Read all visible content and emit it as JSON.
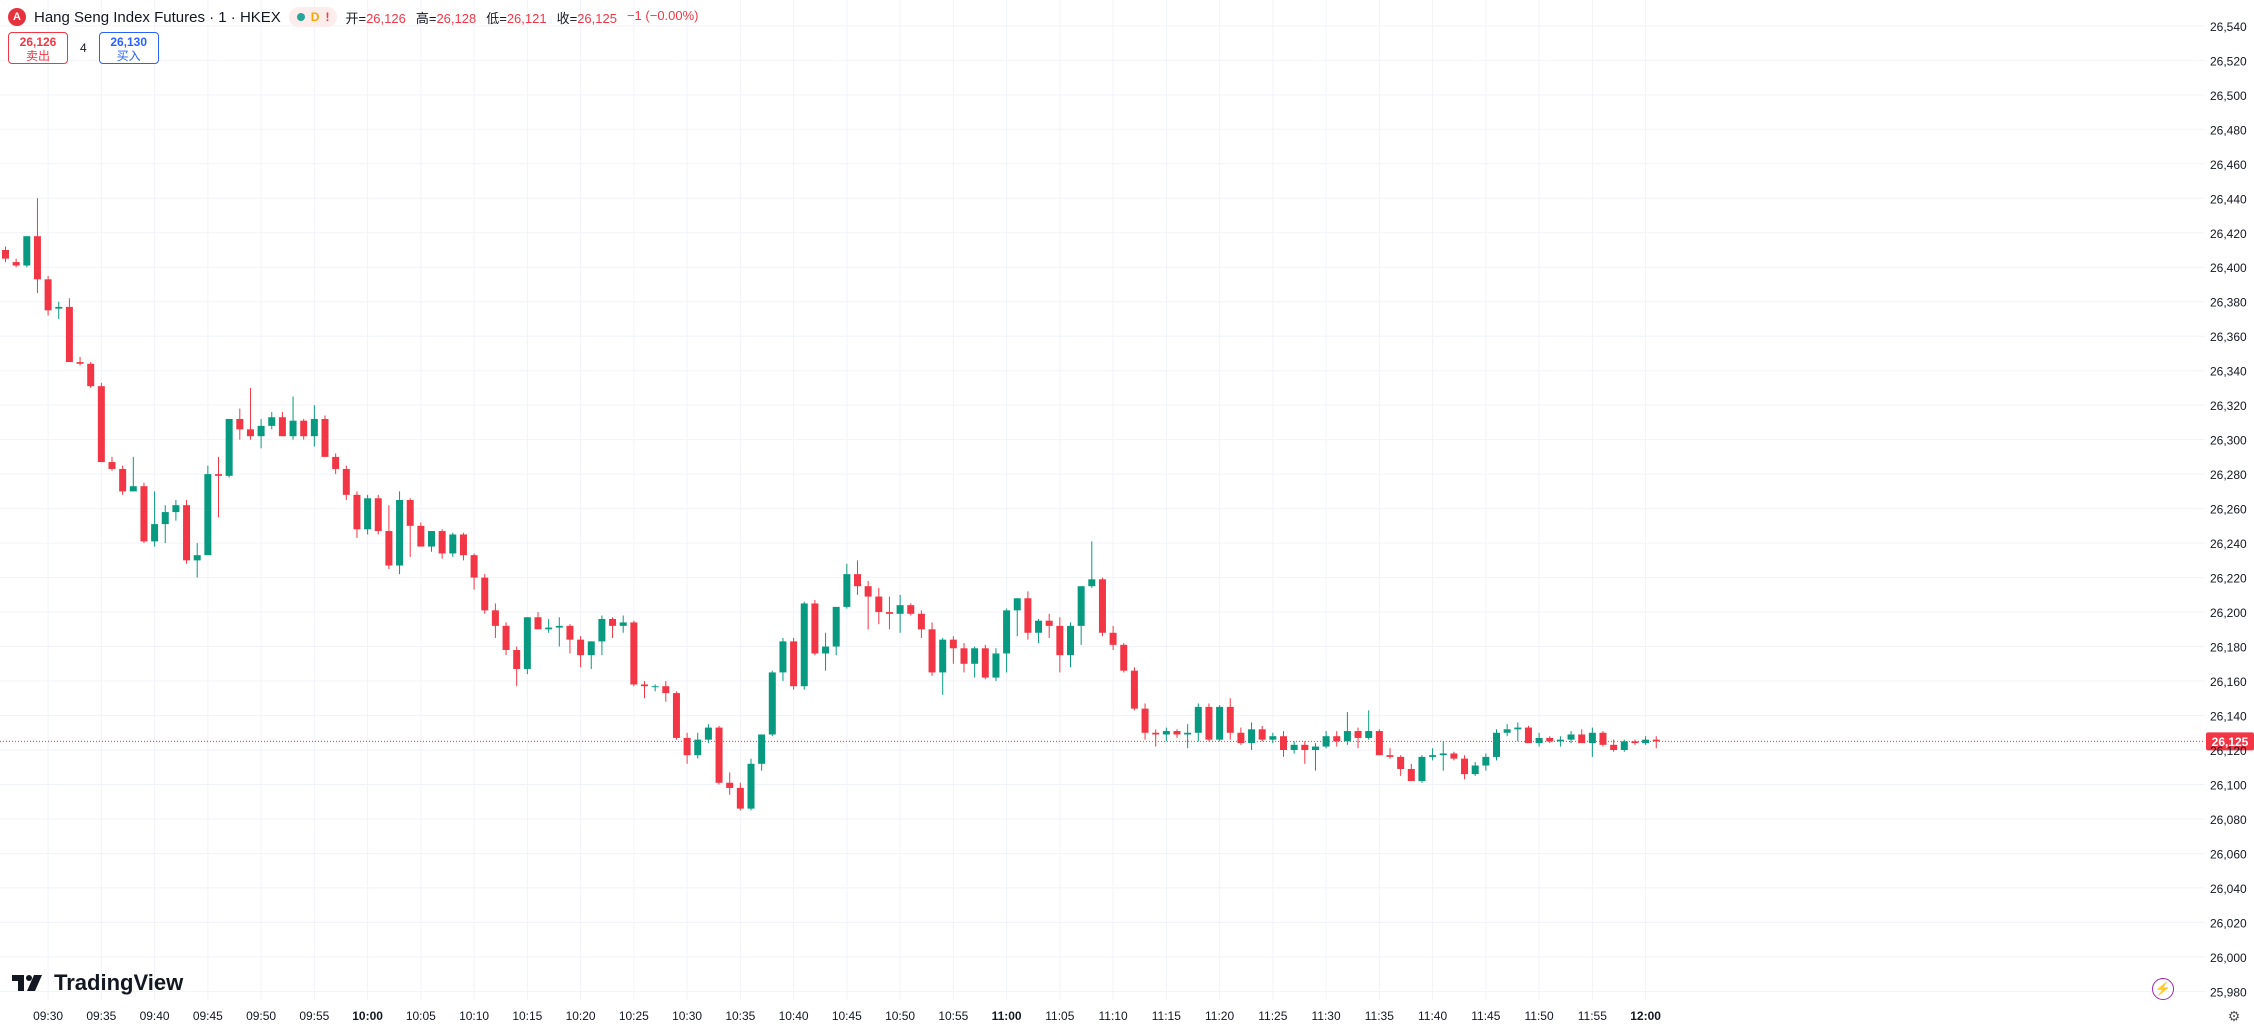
{
  "header": {
    "symbol_badge": "A",
    "title": "Hang Seng Index Futures · 1 · HKEX",
    "status_d": "D",
    "status_alert": "!",
    "ohlc": [
      {
        "label": "开",
        "value": "26,126"
      },
      {
        "label": "高",
        "value": "26,128"
      },
      {
        "label": "低",
        "value": "26,121"
      },
      {
        "label": "收",
        "value": "26,125"
      }
    ],
    "change": "−1 (−0.00%)"
  },
  "trade": {
    "sell_price": "26,126",
    "sell_label": "卖出",
    "spread": "4",
    "buy_price": "26,130",
    "buy_label": "买入"
  },
  "watermark": "TradingView",
  "colors": {
    "up": "#089981",
    "down": "#f23645",
    "grid": "#f0f3fa",
    "axis_text": "#131722",
    "last_price_line": "#f23645"
  },
  "icons": {
    "bolt": "lightning-bolt-icon",
    "settings": "gear-icon"
  },
  "chart_data": {
    "type": "candlestick",
    "title": "Hang Seng Index Futures · 1 · HKEX",
    "y_axis_side": "right",
    "ylim": [
      25975,
      26555
    ],
    "y_ticks": [
      25980,
      26000,
      26020,
      26040,
      26060,
      26080,
      26100,
      26120,
      26140,
      26160,
      26180,
      26200,
      26220,
      26240,
      26260,
      26280,
      26300,
      26320,
      26340,
      26360,
      26380,
      26400,
      26420,
      26440,
      26460,
      26480,
      26500,
      26520,
      26540
    ],
    "x_ticks": [
      {
        "label": "09:30",
        "bold": false
      },
      {
        "label": "09:35",
        "bold": false
      },
      {
        "label": "09:40",
        "bold": false
      },
      {
        "label": "09:45",
        "bold": false
      },
      {
        "label": "09:50",
        "bold": false
      },
      {
        "label": "09:55",
        "bold": false
      },
      {
        "label": "10:00",
        "bold": true
      },
      {
        "label": "10:05",
        "bold": false
      },
      {
        "label": "10:10",
        "bold": false
      },
      {
        "label": "10:15",
        "bold": false
      },
      {
        "label": "10:20",
        "bold": false
      },
      {
        "label": "10:25",
        "bold": false
      },
      {
        "label": "10:30",
        "bold": false
      },
      {
        "label": "10:35",
        "bold": false
      },
      {
        "label": "10:40",
        "bold": false
      },
      {
        "label": "10:45",
        "bold": false
      },
      {
        "label": "10:50",
        "bold": false
      },
      {
        "label": "10:55",
        "bold": false
      },
      {
        "label": "11:00",
        "bold": true
      },
      {
        "label": "11:05",
        "bold": false
      },
      {
        "label": "11:10",
        "bold": false
      },
      {
        "label": "11:15",
        "bold": false
      },
      {
        "label": "11:20",
        "bold": false
      },
      {
        "label": "11:25",
        "bold": false
      },
      {
        "label": "11:30",
        "bold": false
      },
      {
        "label": "11:35",
        "bold": false
      },
      {
        "label": "11:40",
        "bold": false
      },
      {
        "label": "11:45",
        "bold": false
      },
      {
        "label": "11:50",
        "bold": false
      },
      {
        "label": "11:55",
        "bold": false
      },
      {
        "label": "12:00",
        "bold": true
      }
    ],
    "last_price": 26125,
    "last_price_label": "26,125",
    "grid": true,
    "ohlc": [
      [
        26410,
        26412,
        26403,
        26405
      ],
      [
        26403,
        26405,
        26400,
        26401
      ],
      [
        26401,
        26418,
        26400,
        26418
      ],
      [
        26418,
        26440,
        26385,
        26393
      ],
      [
        26393,
        26395,
        26372,
        26375
      ],
      [
        26376,
        26380,
        26370,
        26377
      ],
      [
        26377,
        26382,
        26345,
        26345
      ],
      [
        26345,
        26348,
        26343,
        26344
      ],
      [
        26344,
        26345,
        26330,
        26331
      ],
      [
        26331,
        26333,
        26287,
        26287
      ],
      [
        26287,
        26290,
        26282,
        26283
      ],
      [
        26283,
        26285,
        26268,
        26270
      ],
      [
        26270,
        26290,
        26270,
        26273
      ],
      [
        26273,
        26275,
        26240,
        26241
      ],
      [
        26241,
        26270,
        26238,
        26251
      ],
      [
        26251,
        26262,
        26240,
        26258
      ],
      [
        26258,
        26265,
        26253,
        26262
      ],
      [
        26262,
        26265,
        26228,
        26230
      ],
      [
        26230,
        26240,
        26220,
        26233
      ],
      [
        26233,
        26285,
        26233,
        26280
      ],
      [
        26280,
        26290,
        26255,
        26279
      ],
      [
        26279,
        26312,
        26278,
        26312
      ],
      [
        26312,
        26318,
        26300,
        26306
      ],
      [
        26306,
        26330,
        26300,
        26302
      ],
      [
        26302,
        26312,
        26295,
        26308
      ],
      [
        26308,
        26316,
        26306,
        26313
      ],
      [
        26313,
        26316,
        26302,
        26302
      ],
      [
        26302,
        26325,
        26300,
        26311
      ],
      [
        26311,
        26312,
        26300,
        26302
      ],
      [
        26302,
        26320,
        26296,
        26312
      ],
      [
        26312,
        26314,
        26290,
        26290
      ],
      [
        26290,
        26292,
        26280,
        26283
      ],
      [
        26283,
        26285,
        26265,
        26268
      ],
      [
        26268,
        26270,
        26243,
        26248
      ],
      [
        26248,
        26268,
        26245,
        26266
      ],
      [
        26266,
        26268,
        26245,
        26247
      ],
      [
        26247,
        26262,
        26225,
        26227
      ],
      [
        26227,
        26270,
        26222,
        26265
      ],
      [
        26265,
        26266,
        26232,
        26250
      ],
      [
        26250,
        26252,
        26238,
        26238
      ],
      [
        26238,
        26242,
        26235,
        26247
      ],
      [
        26247,
        26248,
        26231,
        26234
      ],
      [
        26234,
        26246,
        26232,
        26245
      ],
      [
        26245,
        26246,
        26230,
        26233
      ],
      [
        26233,
        26234,
        26213,
        26220
      ],
      [
        26220,
        26222,
        26199,
        26201
      ],
      [
        26201,
        26205,
        26185,
        26192
      ],
      [
        26192,
        26194,
        26175,
        26178
      ],
      [
        26178,
        26180,
        26157,
        26167
      ],
      [
        26167,
        26197,
        26164,
        26197
      ],
      [
        26197,
        26200,
        26193,
        26190
      ],
      [
        26190,
        26196,
        26188,
        26191
      ],
      [
        26191,
        26197,
        26180,
        26192
      ],
      [
        26192,
        26193,
        26176,
        26184
      ],
      [
        26184,
        26186,
        26168,
        26175
      ],
      [
        26175,
        26183,
        26167,
        26183
      ],
      [
        26183,
        26198,
        26175,
        26196
      ],
      [
        26196,
        26197,
        26185,
        26192
      ],
      [
        26192,
        26198,
        26188,
        26194
      ],
      [
        26194,
        26195,
        26157,
        26158
      ],
      [
        26158,
        26160,
        26150,
        26157
      ],
      [
        26157,
        26158,
        26154,
        26157
      ],
      [
        26157,
        26160,
        26148,
        26153
      ],
      [
        26153,
        26154,
        26126,
        26127
      ],
      [
        26127,
        26130,
        26112,
        26117
      ],
      [
        26117,
        26130,
        26115,
        26126
      ],
      [
        26126,
        26135,
        26124,
        26133
      ],
      [
        26133,
        26134,
        26100,
        26101
      ],
      [
        26101,
        26107,
        26094,
        26098
      ],
      [
        26098,
        26101,
        26085,
        26086
      ],
      [
        26086,
        26115,
        26085,
        26112
      ],
      [
        26112,
        26125,
        26108,
        26129
      ],
      [
        26129,
        26166,
        26128,
        26165
      ],
      [
        26165,
        26185,
        26160,
        26183
      ],
      [
        26183,
        26185,
        26155,
        26157
      ],
      [
        26157,
        26206,
        26155,
        26205
      ],
      [
        26205,
        26207,
        26175,
        26176
      ],
      [
        26176,
        26188,
        26166,
        26180
      ],
      [
        26180,
        26203,
        26175,
        26203
      ],
      [
        26203,
        26228,
        26202,
        26222
      ],
      [
        26222,
        26230,
        26210,
        26215
      ],
      [
        26215,
        26218,
        26190,
        26209
      ],
      [
        26209,
        26214,
        26193,
        26200
      ],
      [
        26200,
        26209,
        26190,
        26199
      ],
      [
        26199,
        26210,
        26188,
        26204
      ],
      [
        26204,
        26205,
        26198,
        26199
      ],
      [
        26199,
        26201,
        26185,
        26190
      ],
      [
        26190,
        26194,
        26163,
        26165
      ],
      [
        26165,
        26185,
        26152,
        26184
      ],
      [
        26184,
        26186,
        26170,
        26179
      ],
      [
        26179,
        26182,
        26165,
        26170
      ],
      [
        26170,
        26180,
        26162,
        26179
      ],
      [
        26179,
        26181,
        26161,
        26162
      ],
      [
        26162,
        26179,
        26160,
        26176
      ],
      [
        26176,
        26202,
        26165,
        26201
      ],
      [
        26201,
        26208,
        26186,
        26208
      ],
      [
        26208,
        26212,
        26184,
        26188
      ],
      [
        26188,
        26196,
        26182,
        26195
      ],
      [
        26195,
        26199,
        26185,
        26192
      ],
      [
        26192,
        26197,
        26165,
        26175
      ],
      [
        26175,
        26194,
        26168,
        26192
      ],
      [
        26192,
        26214,
        26181,
        26215
      ],
      [
        26215,
        26241,
        26214,
        26219
      ],
      [
        26219,
        26220,
        26186,
        26188
      ],
      [
        26188,
        26192,
        26178,
        26181
      ],
      [
        26181,
        26182,
        26165,
        26166
      ],
      [
        26166,
        26168,
        26143,
        26144
      ],
      [
        26144,
        26147,
        26126,
        26130
      ],
      [
        26130,
        26132,
        26122,
        26129
      ],
      [
        26129,
        26133,
        26125,
        26131
      ],
      [
        26131,
        26132,
        26127,
        26129
      ],
      [
        26129,
        26135,
        26121,
        26130
      ],
      [
        26130,
        26147,
        26125,
        26145
      ],
      [
        26145,
        26147,
        26125,
        26126
      ],
      [
        26126,
        26146,
        26125,
        26145
      ],
      [
        26145,
        26150,
        26126,
        26130
      ],
      [
        26130,
        26133,
        26123,
        26124
      ],
      [
        26124,
        26136,
        26120,
        26132
      ],
      [
        26132,
        26134,
        26125,
        26126
      ],
      [
        26126,
        26130,
        26124,
        26128
      ],
      [
        26128,
        26131,
        26116,
        26120
      ],
      [
        26120,
        26125,
        26118,
        26123
      ],
      [
        26123,
        26125,
        26112,
        26120
      ],
      [
        26120,
        26124,
        26108,
        26122
      ],
      [
        26122,
        26131,
        26121,
        26128
      ],
      [
        26128,
        26131,
        26122,
        26125
      ],
      [
        26125,
        26142,
        26123,
        26131
      ],
      [
        26131,
        26133,
        26121,
        26127
      ],
      [
        26127,
        26143,
        26126,
        26131
      ],
      [
        26131,
        26132,
        26117,
        26117
      ],
      [
        26117,
        26121,
        26115,
        26116
      ],
      [
        26116,
        26117,
        26105,
        26109
      ],
      [
        26109,
        26112,
        26103,
        26102
      ],
      [
        26102,
        26117,
        26101,
        26116
      ],
      [
        26116,
        26121,
        26114,
        26117
      ],
      [
        26117,
        26125,
        26108,
        26118
      ],
      [
        26118,
        26119,
        26114,
        26115
      ],
      [
        26115,
        26117,
        26103,
        26106
      ],
      [
        26106,
        26113,
        26105,
        26111
      ],
      [
        26111,
        26118,
        26108,
        26116
      ],
      [
        26116,
        26132,
        26114,
        26130
      ],
      [
        26130,
        26135,
        26128,
        26132
      ],
      [
        26132,
        26136,
        26125,
        26133
      ],
      [
        26133,
        26134,
        26124,
        26124
      ],
      [
        26124,
        26130,
        26122,
        26127
      ],
      [
        26127,
        26128,
        26124,
        26125
      ],
      [
        26125,
        26128,
        26122,
        26126
      ],
      [
        26126,
        26131,
        26124,
        26129
      ],
      [
        26129,
        26132,
        26124,
        26124
      ],
      [
        26124,
        26133,
        26116,
        26130
      ],
      [
        26130,
        26131,
        26122,
        26123
      ],
      [
        26123,
        26126,
        26119,
        26120
      ],
      [
        26120,
        26126,
        26119,
        26125
      ],
      [
        26125,
        26126,
        26123,
        26124
      ],
      [
        26124,
        26128,
        26123,
        26126
      ],
      [
        26126,
        26128,
        26121,
        26125
      ]
    ]
  }
}
